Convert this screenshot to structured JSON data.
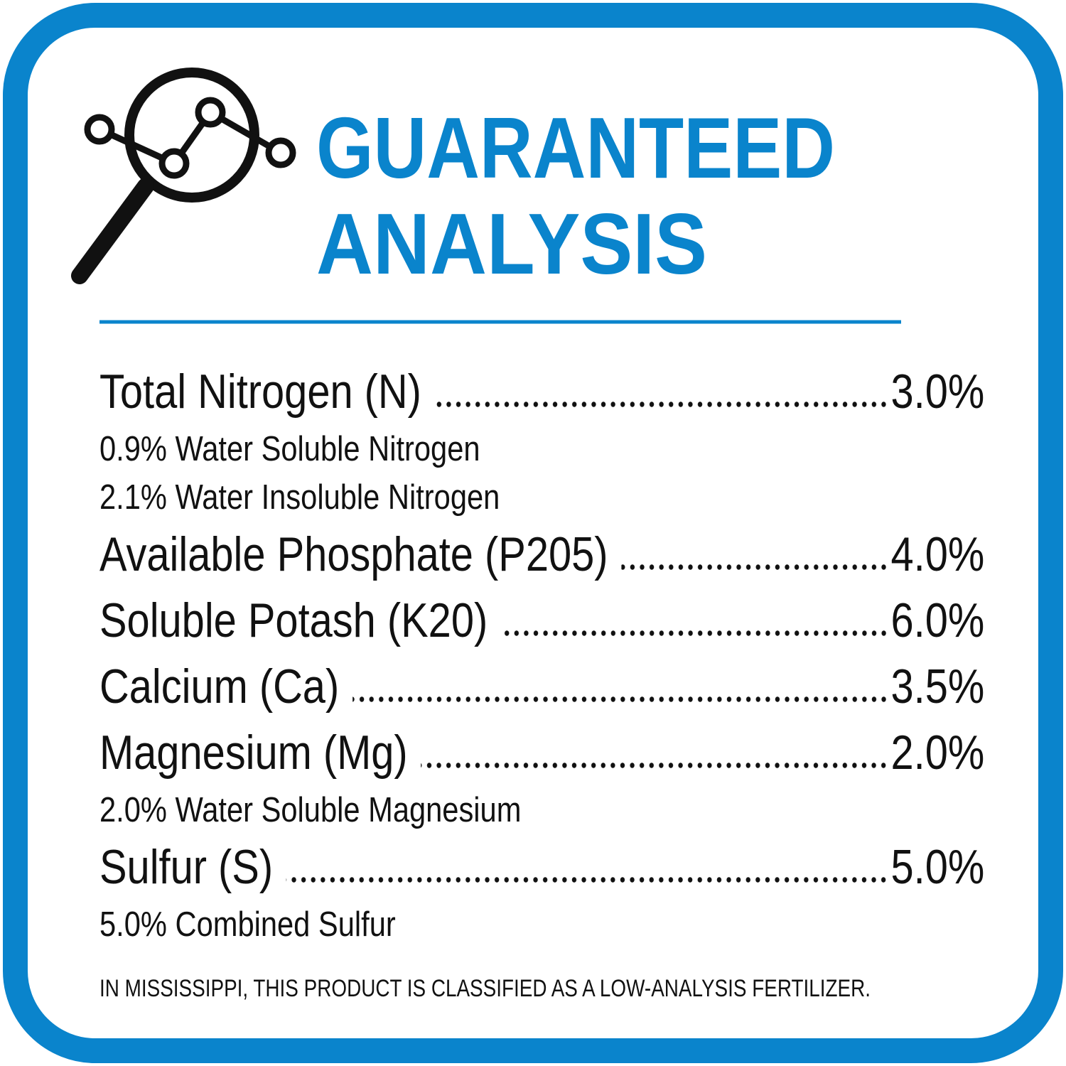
{
  "header": {
    "title_lines": [
      "GUARANTEED",
      "ANALYSIS"
    ]
  },
  "rows": [
    {
      "name": "Total Nitrogen (N)",
      "value": "3.0%",
      "notes": [
        "0.9% Water Soluble Nitrogen",
        "2.1% Water Insoluble Nitrogen"
      ]
    },
    {
      "name": "Available Phosphate (P205)",
      "value": "4.0%",
      "notes": []
    },
    {
      "name": "Soluble Potash (K20)",
      "value": "6.0%",
      "notes": []
    },
    {
      "name": "Calcium (Ca)",
      "value": "3.5%",
      "notes": []
    },
    {
      "name": "Magnesium (Mg)",
      "value": "2.0%",
      "notes": [
        "2.0% Water Soluble Magnesium"
      ]
    },
    {
      "name": "Sulfur (S)",
      "value": "5.0%",
      "notes": [
        "5.0% Combined Sulfur"
      ]
    }
  ],
  "footer": {
    "note": "IN MISSISSIPPI, THIS PRODUCT IS CLASSIFIED AS A LOW-ANALYSIS FERTILIZER."
  }
}
